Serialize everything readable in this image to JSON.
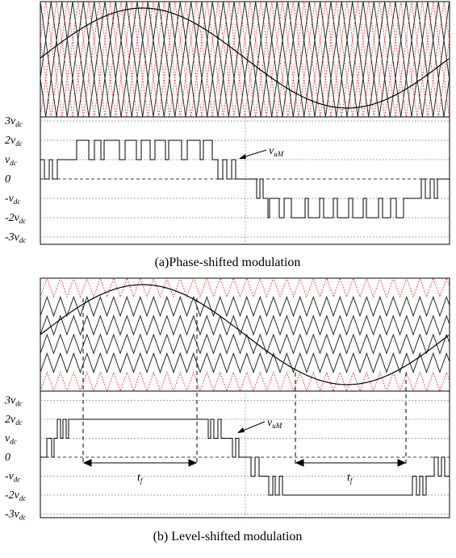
{
  "figure": {
    "panel_a": {
      "caption": "(a)Phase-shifted modulation",
      "output_label": "vuM",
      "output_label_main": "v",
      "output_label_sub": "uM",
      "y_ticks": [
        {
          "value": 3,
          "coef": "3",
          "sub": "dc"
        },
        {
          "value": 2,
          "coef": "2",
          "sub": "dc"
        },
        {
          "value": 1,
          "coef": "",
          "sub": "dc"
        },
        {
          "value": 0,
          "text": "0"
        },
        {
          "value": -1,
          "coef": "-",
          "sub": "dc"
        },
        {
          "value": -2,
          "coef": "-2",
          "sub": "dc"
        },
        {
          "value": -3,
          "coef": "-3",
          "sub": "dc"
        }
      ]
    },
    "panel_b": {
      "caption": "(b) Level-shifted modulation",
      "output_label_main": "v",
      "output_label_sub": "uM",
      "interval_label_main": "t",
      "interval_label_sub": "f",
      "y_ticks": [
        {
          "value": 3,
          "coef": "3",
          "sub": "dc"
        },
        {
          "value": 2,
          "coef": "2",
          "sub": "dc"
        },
        {
          "value": 1,
          "coef": "",
          "sub": "dc"
        },
        {
          "value": 0,
          "text": "0"
        },
        {
          "value": -1,
          "coef": "-",
          "sub": "dc"
        },
        {
          "value": -2,
          "coef": "-2",
          "sub": "dc"
        },
        {
          "value": -3,
          "coef": "-3",
          "sub": "dc"
        }
      ]
    },
    "colors": {
      "carrier_black": "#2a2a2a",
      "carrier_red": "#e0302a",
      "reference": "#000000",
      "grid": "#888888"
    }
  }
}
